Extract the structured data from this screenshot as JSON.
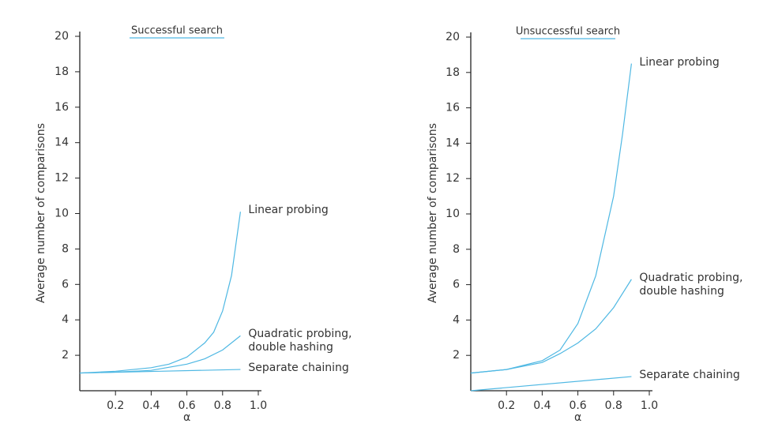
{
  "chart_data": [
    {
      "type": "line",
      "title": "Successful search",
      "xlabel": "α",
      "ylabel": "Average number of comparisons",
      "xlim": [
        0,
        1
      ],
      "ylim": [
        0,
        20
      ],
      "xticks": [
        0.2,
        0.4,
        0.6,
        0.8,
        {
          "value": 1,
          "label": "1.0"
        }
      ],
      "yticks": [
        2,
        4,
        6,
        8,
        10,
        12,
        14,
        16,
        18,
        20
      ],
      "series": [
        {
          "name": "Linear probing",
          "color": "#4fb8e3",
          "x": [
            0,
            0.2,
            0.4,
            0.5,
            0.6,
            0.7,
            0.75,
            0.8,
            0.85,
            0.9
          ],
          "values": [
            1,
            1.1,
            1.3,
            1.5,
            1.9,
            2.7,
            3.3,
            4.5,
            6.5,
            10.1
          ]
        },
        {
          "name": "Quadratic probing, double hashing",
          "color": "#4fb8e3",
          "x": [
            0,
            0.2,
            0.4,
            0.6,
            0.7,
            0.8,
            0.9
          ],
          "values": [
            1,
            1.05,
            1.15,
            1.5,
            1.8,
            2.3,
            3.1
          ]
        },
        {
          "name": "Separate chaining",
          "color": "#4fb8e3",
          "x": [
            0,
            0.45,
            0.9
          ],
          "values": [
            1,
            1.1,
            1.2
          ]
        }
      ]
    },
    {
      "type": "line",
      "title": "Unsuccessful search",
      "xlabel": "α",
      "ylabel": "Average number of comparisons",
      "xlim": [
        0,
        1
      ],
      "ylim": [
        0,
        20
      ],
      "xticks": [
        0.2,
        0.4,
        0.6,
        0.8,
        {
          "value": 1,
          "label": "1.0"
        }
      ],
      "yticks": [
        2,
        4,
        6,
        8,
        10,
        12,
        14,
        16,
        18,
        20
      ],
      "series": [
        {
          "name": "Linear probing",
          "color": "#4fb8e3",
          "x": [
            0,
            0.2,
            0.4,
            0.5,
            0.6,
            0.7,
            0.8,
            0.85,
            0.9
          ],
          "values": [
            1,
            1.2,
            1.7,
            2.3,
            3.8,
            6.5,
            11,
            14.5,
            18.5
          ]
        },
        {
          "name": "Quadratic probing, double hashing",
          "color": "#4fb8e3",
          "x": [
            0,
            0.2,
            0.4,
            0.5,
            0.6,
            0.7,
            0.8,
            0.9
          ],
          "values": [
            1,
            1.2,
            1.6,
            2.1,
            2.7,
            3.5,
            4.7,
            6.3
          ]
        },
        {
          "name": "Separate chaining",
          "color": "#4fb8e3",
          "x": [
            0,
            0.9
          ],
          "values": [
            0,
            0.8
          ]
        }
      ]
    }
  ]
}
